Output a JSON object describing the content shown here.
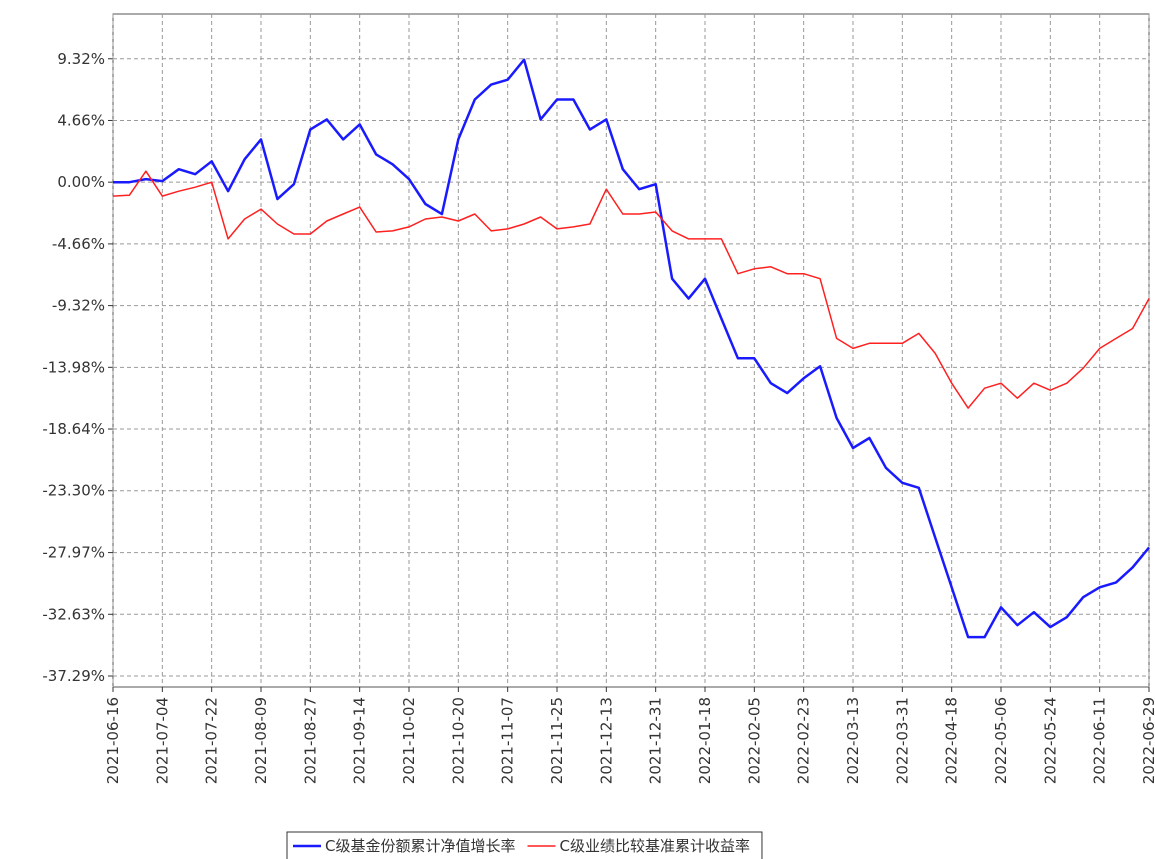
{
  "chart_data": {
    "type": "line",
    "x": [
      "2021-06-16",
      "2021-06-22",
      "2021-06-28",
      "2021-07-04",
      "2021-07-10",
      "2021-07-16",
      "2021-07-22",
      "2021-07-28",
      "2021-08-03",
      "2021-08-09",
      "2021-08-15",
      "2021-08-21",
      "2021-08-27",
      "2021-09-02",
      "2021-09-08",
      "2021-09-14",
      "2021-09-20",
      "2021-09-26",
      "2021-10-02",
      "2021-10-08",
      "2021-10-14",
      "2021-10-20",
      "2021-10-26",
      "2021-11-01",
      "2021-11-07",
      "2021-11-13",
      "2021-11-19",
      "2021-11-25",
      "2021-12-01",
      "2021-12-07",
      "2021-12-13",
      "2021-12-19",
      "2021-12-25",
      "2021-12-31",
      "2022-01-06",
      "2022-01-12",
      "2022-01-18",
      "2022-01-24",
      "2022-01-30",
      "2022-02-05",
      "2022-02-11",
      "2022-02-17",
      "2022-02-23",
      "2022-03-01",
      "2022-03-07",
      "2022-03-13",
      "2022-03-19",
      "2022-03-25",
      "2022-03-31",
      "2022-04-06",
      "2022-04-12",
      "2022-04-18",
      "2022-04-24",
      "2022-04-30",
      "2022-05-06",
      "2022-05-12",
      "2022-05-18",
      "2022-05-24",
      "2022-05-30",
      "2022-06-05",
      "2022-06-11",
      "2022-06-17",
      "2022-06-23",
      "2022-06-29"
    ],
    "series": [
      {
        "name": "C级基金份额累计净值增长率",
        "color": "#1a1aff",
        "values": [
          0,
          0,
          0.23,
          0.08,
          0.98,
          0.6,
          1.58,
          -0.68,
          1.73,
          3.23,
          -1.28,
          -0.15,
          3.98,
          4.74,
          3.23,
          4.36,
          2.1,
          1.35,
          0.23,
          -1.65,
          -2.41,
          3.23,
          6.24,
          7.37,
          7.74,
          9.25,
          4.74,
          6.24,
          6.24,
          3.98,
          4.74,
          0.98,
          -0.53,
          -0.15,
          -7.29,
          -8.79,
          -7.29,
          -10.3,
          -13.3,
          -13.3,
          -15.18,
          -15.93,
          -14.81,
          -13.9,
          -17.81,
          -20.07,
          -19.32,
          -21.57,
          -22.7,
          -23.08,
          -26.84,
          -30.6,
          -34.35,
          -34.35,
          -32.1,
          -33.45,
          -32.47,
          -33.6,
          -32.85,
          -31.34,
          -30.59,
          -30.22,
          -29.09,
          -27.59
        ]
      },
      {
        "name": "C级业绩比较基准累计收益率",
        "color": "#ff2020",
        "values": [
          -1.05,
          -0.98,
          0.83,
          -1.05,
          -0.68,
          -0.38,
          0,
          -4.28,
          -2.78,
          -2.03,
          -3.16,
          -3.91,
          -3.91,
          -2.93,
          -2.4,
          -1.88,
          -3.76,
          -3.68,
          -3.38,
          -2.78,
          -2.63,
          -2.93,
          -2.4,
          -3.68,
          -3.53,
          -3.16,
          -2.63,
          -3.53,
          -3.38,
          -3.16,
          -0.53,
          -2.4,
          -2.4,
          -2.25,
          -3.68,
          -4.28,
          -4.28,
          -4.28,
          -6.91,
          -6.54,
          -6.39,
          -6.91,
          -6.91,
          -7.29,
          -11.8,
          -12.55,
          -12.17,
          -12.17,
          -12.17,
          -11.42,
          -12.93,
          -15.18,
          -17.06,
          -15.56,
          -15.18,
          -16.31,
          -15.18,
          -15.71,
          -15.18,
          -14.05,
          -12.55,
          -11.8,
          -11.05,
          -8.79
        ]
      }
    ],
    "xlim": [
      "2021-06-16",
      "2022-06-29"
    ],
    "xticks": [
      "2021-06-16",
      "2021-07-04",
      "2021-07-22",
      "2021-08-09",
      "2021-08-27",
      "2021-09-14",
      "2021-10-02",
      "2021-10-20",
      "2021-11-07",
      "2021-11-25",
      "2021-12-13",
      "2021-12-31",
      "2022-01-18",
      "2022-02-05",
      "2022-02-23",
      "2022-03-13",
      "2022-03-31",
      "2022-04-18",
      "2022-05-06",
      "2022-05-24",
      "2022-06-11",
      "2022-06-29"
    ],
    "ylim": [
      -38.12,
      12.7
    ],
    "yticks": [
      {
        "value": 9.32,
        "label": "9.32%"
      },
      {
        "value": 4.66,
        "label": "4.66%"
      },
      {
        "value": 0,
        "label": "0.00%"
      },
      {
        "value": -4.66,
        "label": "-4.66%"
      },
      {
        "value": -9.32,
        "label": "-9.32%"
      },
      {
        "value": -13.98,
        "label": "-13.98%"
      },
      {
        "value": -18.64,
        "label": "-18.64%"
      },
      {
        "value": -23.3,
        "label": "-23.30%"
      },
      {
        "value": -27.97,
        "label": "-27.97%"
      },
      {
        "value": -32.63,
        "label": "-32.63%"
      },
      {
        "value": -37.29,
        "label": "-37.29%"
      }
    ],
    "grid": true,
    "legend": "bottom"
  }
}
